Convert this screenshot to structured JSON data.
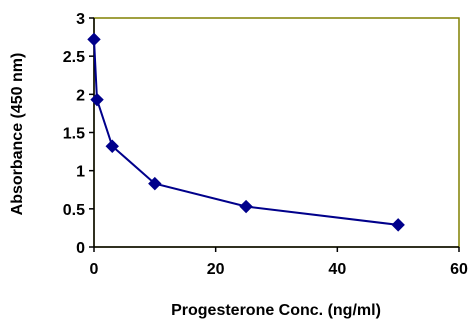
{
  "chart_data": {
    "type": "line",
    "title": "",
    "xlabel": "Progesterone Conc. (ng/ml)",
    "ylabel": "Absorbance (450 nm)",
    "xlim": [
      0,
      60
    ],
    "ylim": [
      0,
      3
    ],
    "x_ticks": [
      0,
      20,
      40,
      60
    ],
    "y_ticks": [
      0,
      0.5,
      1,
      1.5,
      2,
      2.5,
      3
    ],
    "x_tick_labels": [
      "0",
      "20",
      "40",
      "60"
    ],
    "y_tick_labels": [
      "0",
      "0.5",
      "1",
      "1.5",
      "2",
      "2.5",
      "3"
    ],
    "grid": false,
    "legend": "none",
    "series": [
      {
        "marker": "diamond",
        "color": "#00008B",
        "x": [
          0,
          0.5,
          3,
          10,
          25,
          50
        ],
        "y": [
          2.72,
          1.93,
          1.32,
          0.83,
          0.53,
          0.29
        ]
      }
    ],
    "plot_border_color": "#808000",
    "axis_color": "#000000"
  }
}
